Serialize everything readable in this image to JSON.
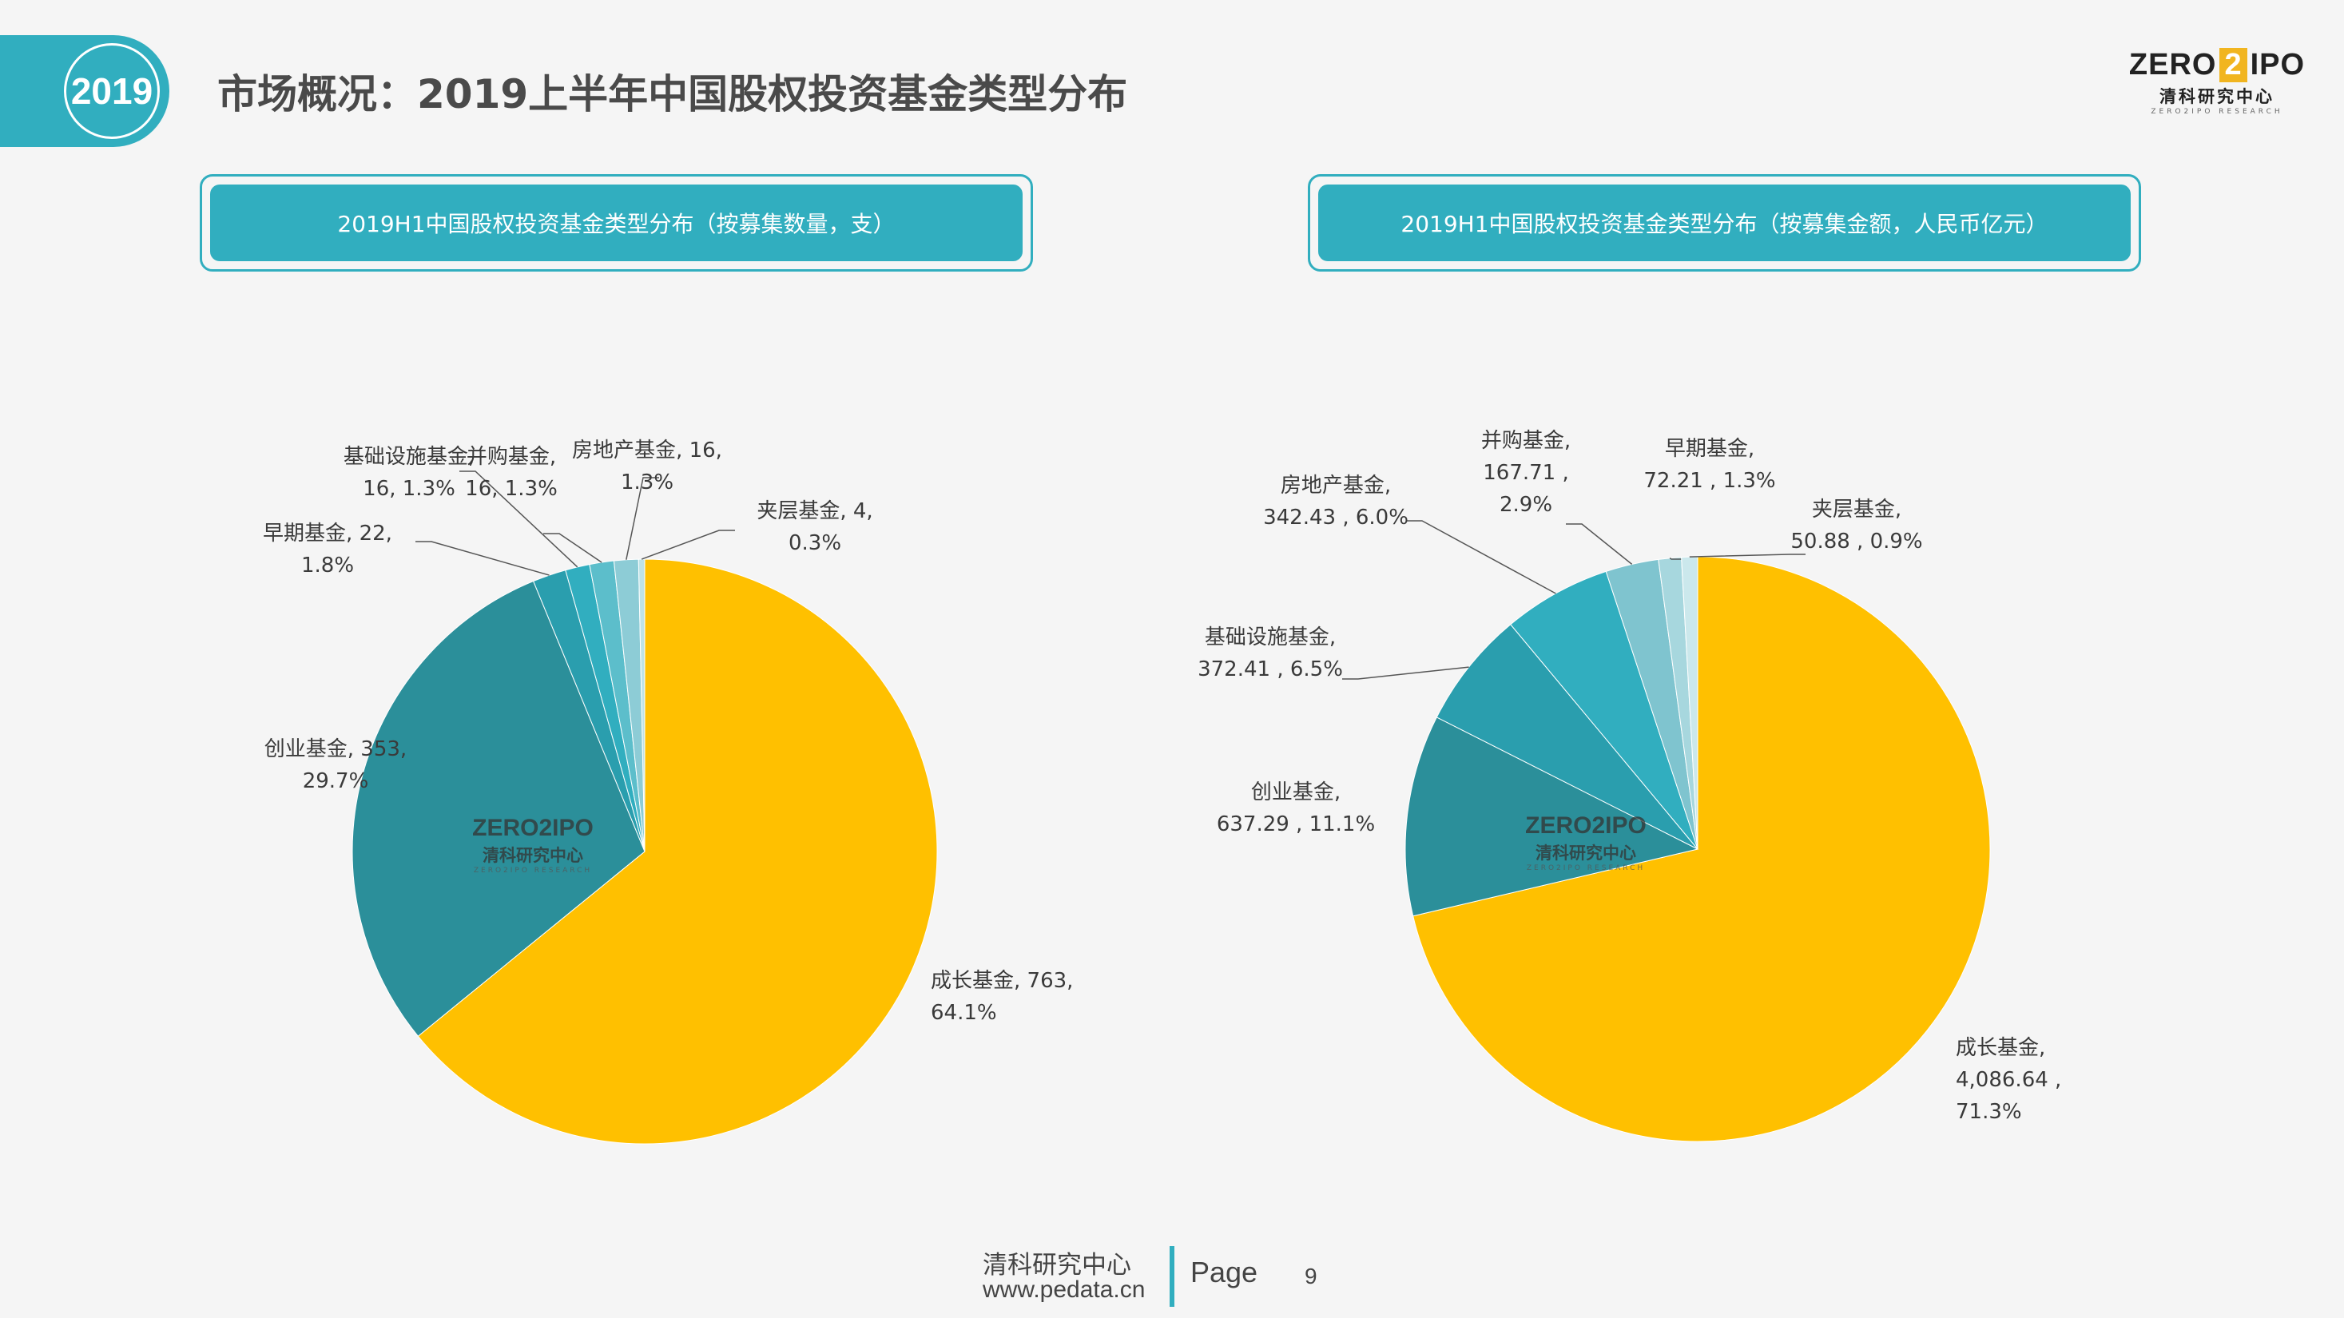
{
  "header": {
    "year": "2019",
    "title": "市场概况：2019上半年中国股权投资基金类型分布"
  },
  "logo": {
    "zero": "ZERO",
    "two": "2",
    "ipo": "IPO",
    "cn": "清科研究中心",
    "en": "ZERO2IPO RESEARCH"
  },
  "panels": [
    {
      "title": "2019H1中国股权投资基金类型分布（按募集数量，支）"
    },
    {
      "title": "2019H1中国股权投资基金类型分布（按募集金额，人民币亿元）"
    }
  ],
  "colors": {
    "accent": "#31aebf",
    "gold": "#ffc000",
    "dark_teal": "#2b8f9a"
  },
  "chart_data": [
    {
      "type": "pie",
      "title": "2019H1中国股权投资基金类型分布（按募集数量，支）",
      "slices": [
        {
          "name": "成长基金",
          "value": 763,
          "percent": "64.1%",
          "label": [
            "成长基金, 763,",
            "64.1%"
          ],
          "color": "#ffc000"
        },
        {
          "name": "创业基金",
          "value": 353,
          "percent": "29.7%",
          "label": [
            "创业基金, 353,",
            "29.7%"
          ],
          "color": "#2b8f9a"
        },
        {
          "name": "早期基金",
          "value": 22,
          "percent": "1.8%",
          "label": [
            "早期基金, 22,",
            "1.8%"
          ],
          "color": "#2a9eae"
        },
        {
          "name": "基础设施基金",
          "value": 16,
          "percent": "1.3%",
          "label": [
            "基础设施基金,",
            "16, 1.3%"
          ],
          "color": "#31aebf"
        },
        {
          "name": "并购基金",
          "value": 16,
          "percent": "1.3%",
          "label": [
            "并购基金,",
            "16, 1.3%"
          ],
          "color": "#5cbecb"
        },
        {
          "name": "房地产基金",
          "value": 16,
          "percent": "1.3%",
          "label": [
            "房地产基金, 16,",
            "1.3%"
          ],
          "color": "#8dccd6"
        },
        {
          "name": "夹层基金",
          "value": 4,
          "percent": "0.3%",
          "label": [
            "夹层基金, 4,",
            "0.3%"
          ],
          "color": "#bfe3e8"
        }
      ]
    },
    {
      "type": "pie",
      "title": "2019H1中国股权投资基金类型分布（按募集金额，人民币亿元）",
      "slices": [
        {
          "name": "成长基金",
          "value": 4086.64,
          "percent": "71.3%",
          "label": [
            "成长基金,",
            "4,086.64 ,",
            "71.3%"
          ],
          "color": "#ffc000"
        },
        {
          "name": "创业基金",
          "value": 637.29,
          "percent": "11.1%",
          "label": [
            "创业基金,",
            "637.29 , 11.1%"
          ],
          "color": "#2b8f9a"
        },
        {
          "name": "基础设施基金",
          "value": 372.41,
          "percent": "6.5%",
          "label": [
            "基础设施基金,",
            "372.41 , 6.5%"
          ],
          "color": "#2a9eae"
        },
        {
          "name": "房地产基金",
          "value": 342.43,
          "percent": "6.0%",
          "label": [
            "房地产基金,",
            "342.43 , 6.0%"
          ],
          "color": "#31aebf"
        },
        {
          "name": "并购基金",
          "value": 167.71,
          "percent": "2.9%",
          "label": [
            "并购基金,",
            "167.71 ,",
            "2.9%"
          ],
          "color": "#7fc4cf"
        },
        {
          "name": "早期基金",
          "value": 72.21,
          "percent": "1.3%",
          "label": [
            "早期基金,",
            "72.21 , 1.3%"
          ],
          "color": "#a7d7de"
        },
        {
          "name": "夹层基金",
          "value": 50.88,
          "percent": "0.9%",
          "label": [
            "夹层基金,",
            "50.88 , 0.9%"
          ],
          "color": "#cbe8ec"
        }
      ]
    }
  ],
  "footer": {
    "org": "清科研究中心",
    "url": "www.pedata.cn",
    "page_label": "Page",
    "page_number": "9"
  }
}
